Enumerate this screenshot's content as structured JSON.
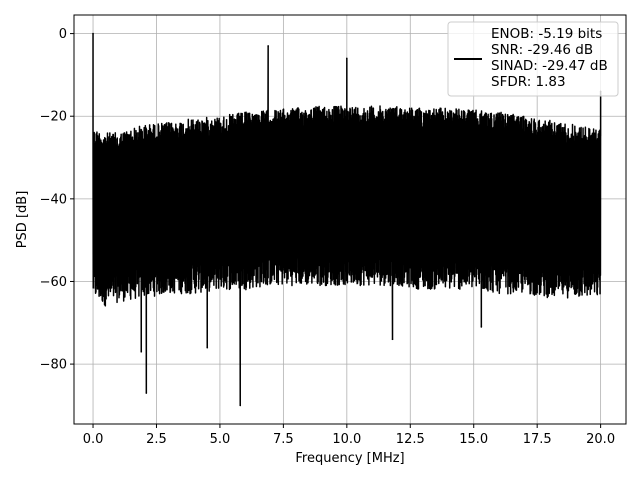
{
  "chart_data": {
    "type": "line",
    "xlabel": "Frequency [MHz]",
    "ylabel": "PSD [dB]",
    "xlim": [
      -0.75,
      21.0
    ],
    "ylim": [
      -94.5,
      4.5
    ],
    "xticks": [
      0.0,
      2.5,
      5.0,
      7.5,
      10.0,
      12.5,
      15.0,
      17.5,
      20.0
    ],
    "xtick_labels": [
      "0.0",
      "2.5",
      "5.0",
      "7.5",
      "10.0",
      "12.5",
      "15.0",
      "17.5",
      "20.0"
    ],
    "yticks": [
      0,
      -20,
      -40,
      -60,
      -80
    ],
    "ytick_labels": [
      "0",
      "−20",
      "−40",
      "−60",
      "−80"
    ],
    "grid": true,
    "legend_position": "top-right",
    "series": [
      {
        "name": "ENOB: -5.19 bits\nSNR: -29.46 dB\nSINAD: -29.47 dB\nSFDR: 1.83",
        "color": "#000000",
        "description": "noise floor PSD spanning roughly -65 to -18 dB across 0-20 MHz",
        "envelope": {
          "x": [
            0.0,
            0.5,
            1.0,
            2.0,
            3.0,
            4.0,
            5.0,
            6.0,
            7.0,
            8.0,
            9.0,
            10.0,
            11.0,
            12.0,
            13.0,
            14.0,
            15.0,
            16.0,
            17.0,
            18.0,
            19.0,
            19.8
          ],
          "upper": [
            -23,
            -24,
            -24,
            -22,
            -21.5,
            -20.5,
            -20,
            -19,
            -18.5,
            -18,
            -17.5,
            -17.5,
            -17.5,
            -17.5,
            -18,
            -18,
            -18.5,
            -19,
            -20,
            -21,
            -22,
            -23
          ],
          "lower": [
            -64,
            -66,
            -65,
            -64,
            -63,
            -63,
            -62,
            -62,
            -61,
            -61,
            -61,
            -61,
            -61,
            -61,
            -62,
            -62,
            -62,
            -63,
            -63,
            -64,
            -64,
            -64
          ]
        },
        "peaks": [
          {
            "x": 0.0,
            "y": 0.0
          },
          {
            "x": 6.9,
            "y": -3.0
          },
          {
            "x": 10.0,
            "y": -6.0
          },
          {
            "x": 20.0,
            "y": -14.0
          }
        ],
        "dips": [
          {
            "x": 1.9,
            "y": -77.0
          },
          {
            "x": 2.1,
            "y": -87.0
          },
          {
            "x": 4.5,
            "y": -76.0
          },
          {
            "x": 5.8,
            "y": -90.0
          },
          {
            "x": 11.8,
            "y": -74.0
          },
          {
            "x": 15.3,
            "y": -71.0
          }
        ]
      }
    ]
  }
}
